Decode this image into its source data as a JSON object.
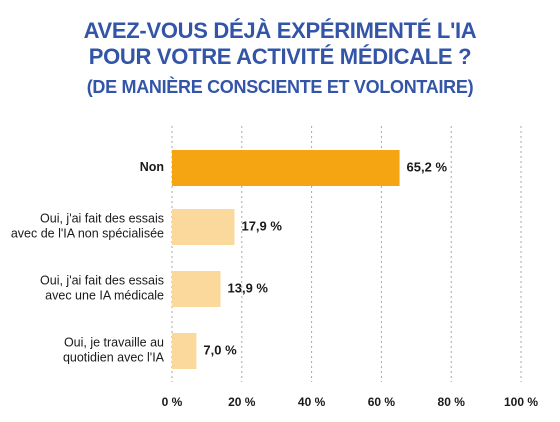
{
  "chart_data": {
    "type": "bar",
    "orientation": "horizontal",
    "title_lines": [
      "AVEZ-VOUS DÉJÀ EXPÉRIMENTÉ L'IA",
      "POUR VOTRE ACTIVITÉ MÉDICALE ?"
    ],
    "subtitle": "(DE MANIÈRE CONSCIENTE ET VOLONTAIRE)",
    "categories": [
      [
        "Non"
      ],
      [
        "Oui, j'ai fait des essais",
        "avec de l'IA non spécialisée"
      ],
      [
        "Oui, j'ai fait des essais",
        "avec une IA médicale"
      ],
      [
        "Oui, je travaille au",
        "quotidien avec l'IA"
      ]
    ],
    "values": [
      65.2,
      17.9,
      13.9,
      7.0
    ],
    "value_labels": [
      "65,2 %",
      "17,9 %",
      "13,9 %",
      "7,0 %"
    ],
    "highlight_index": 0,
    "xlim": [
      0,
      100
    ],
    "xticks": [
      0,
      20,
      40,
      60,
      80,
      100
    ],
    "xtick_labels": [
      "0 %",
      "20 %",
      "40 %",
      "60 %",
      "80 %",
      "100 %"
    ],
    "grid": "vertical-dotted",
    "legend": "none"
  },
  "colors": {
    "title": "#3355a8",
    "bar_highlight": "#f5a511",
    "bar_normal": "#fbd89b",
    "grid": "#a8a8a8",
    "text": "#1a1a1a"
  }
}
